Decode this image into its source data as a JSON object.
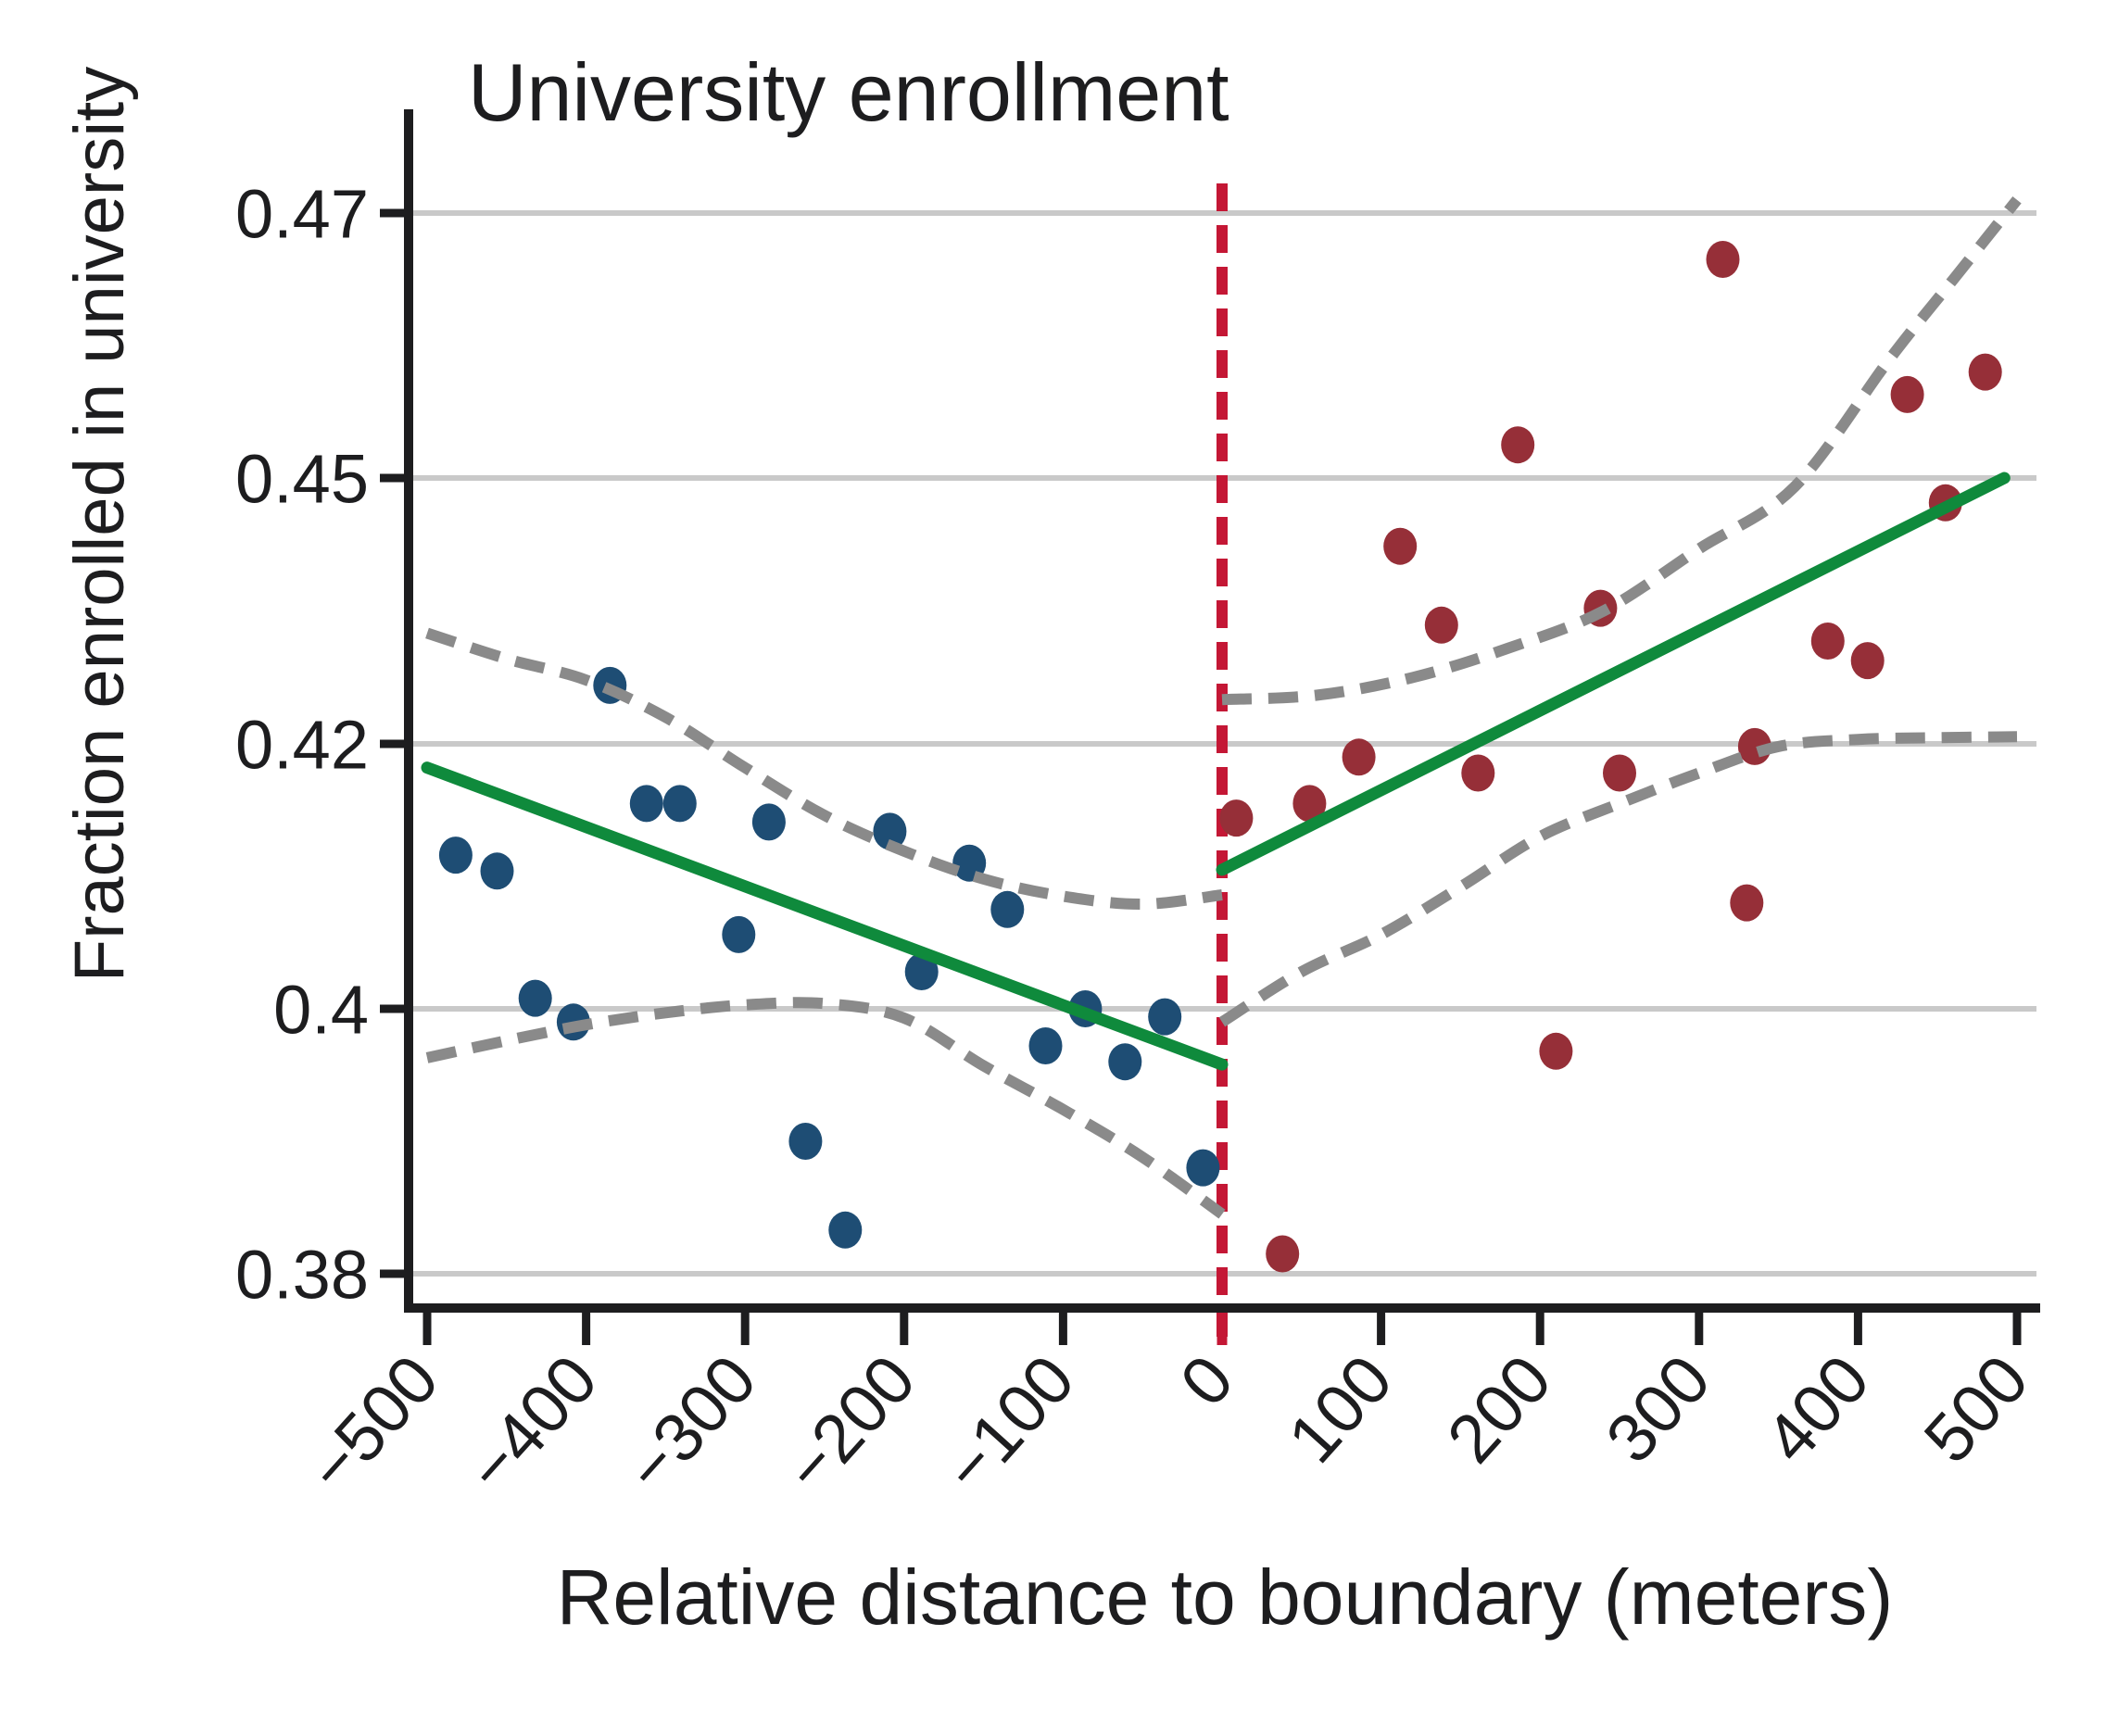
{
  "title": "University enrollment",
  "x_axis_title": "Relative distance to boundary (meters)",
  "y_axis_title": "Fraction enrolled in university",
  "colors": {
    "left_points": "#1e4d74",
    "right_points": "#962f38",
    "fit_line": "#0f8a3c",
    "confidence_band": "#8a8a8a",
    "boundary_line": "#c41735",
    "gridline": "#c9c9c9",
    "axis": "#1d1d1f",
    "background": "#ffffff"
  },
  "chart_data": {
    "type": "scatter",
    "title": "University enrollment",
    "xlabel": "Relative distance to boundary (meters)",
    "ylabel": "Fraction enrolled in university",
    "grid": "horizontal gridlines at each y tick, equally spaced",
    "legend_position": "none",
    "x_axis": {
      "ticks": [
        -500,
        -400,
        -300,
        -200,
        -100,
        0,
        100,
        200,
        300,
        400,
        500
      ],
      "tick_labels": [
        "−500",
        "−400",
        "−300",
        "−200",
        "−100",
        "0",
        "100",
        "200",
        "300",
        "400",
        "500"
      ],
      "tick_label_rotation_deg": -48,
      "range": [
        -515,
        515
      ]
    },
    "y_axis": {
      "ticks": [
        0.47,
        0.45,
        0.42,
        0.4,
        0.38
      ],
      "tick_labels": [
        "0.47",
        "0.45",
        "0.42",
        "0.4",
        "0.38"
      ],
      "note": "tick values are unevenly spaced but gridlines are drawn at equal pixel intervals"
    },
    "boundary_x": 0,
    "series": [
      {
        "name": "binned means left of boundary",
        "kind": "points",
        "color_key": "left_points",
        "points": [
          [
            -482,
            0.4116
          ],
          [
            -456,
            0.4104
          ],
          [
            -432,
            0.4008
          ],
          [
            -408,
            0.399
          ],
          [
            -385,
            0.4266
          ],
          [
            -362,
            0.4155
          ],
          [
            -341,
            0.4155
          ],
          [
            -304,
            0.4056
          ],
          [
            -285,
            0.4141
          ],
          [
            -262,
            0.39
          ],
          [
            -237,
            0.3833
          ],
          [
            -209,
            0.4134
          ],
          [
            -189,
            0.4028
          ],
          [
            -159,
            0.411
          ],
          [
            -135,
            0.4075
          ],
          [
            -111,
            0.3972
          ],
          [
            -86,
            0.4
          ],
          [
            -61,
            0.396
          ],
          [
            -36,
            0.3994
          ],
          [
            -12,
            0.388
          ]
        ]
      },
      {
        "name": "binned means right of boundary",
        "kind": "points",
        "color_key": "right_points",
        "points": [
          [
            9,
            0.4144
          ],
          [
            38,
            0.3815
          ],
          [
            55,
            0.4155
          ],
          [
            86,
            0.419
          ],
          [
            112,
            0.4423
          ],
          [
            138,
            0.4334
          ],
          [
            161,
            0.4178
          ],
          [
            186,
            0.4525
          ],
          [
            210,
            0.3968
          ],
          [
            238,
            0.4353
          ],
          [
            250,
            0.4178
          ],
          [
            315,
            0.4665
          ],
          [
            330,
            0.408
          ],
          [
            335,
            0.4198
          ],
          [
            381,
            0.4316
          ],
          [
            406,
            0.4294
          ],
          [
            431,
            0.4563
          ],
          [
            455,
            0.4472
          ],
          [
            480,
            0.458
          ]
        ]
      },
      {
        "name": "linear fit left of boundary",
        "kind": "line",
        "color_key": "fit_line",
        "points": [
          [
            -500,
            0.4182
          ],
          [
            0,
            0.3958
          ]
        ]
      },
      {
        "name": "linear fit right of boundary",
        "kind": "line",
        "color_key": "fit_line",
        "points": [
          [
            0,
            0.4105
          ],
          [
            492,
            0.45
          ]
        ]
      },
      {
        "name": "confidence band upper left",
        "kind": "dashed-curve",
        "color_key": "confidence_band",
        "points": [
          [
            -500,
            0.4325
          ],
          [
            -450,
            0.4296
          ],
          [
            -400,
            0.4272
          ],
          [
            -350,
            0.423
          ],
          [
            -300,
            0.4182
          ],
          [
            -250,
            0.4146
          ],
          [
            -200,
            0.4119
          ],
          [
            -150,
            0.4098
          ],
          [
            -100,
            0.4085
          ],
          [
            -50,
            0.4079
          ],
          [
            0,
            0.4086
          ]
        ]
      },
      {
        "name": "confidence band lower left",
        "kind": "dashed-curve",
        "color_key": "confidence_band",
        "points": [
          [
            -500,
            0.3963
          ],
          [
            -450,
            0.3976
          ],
          [
            -400,
            0.3988
          ],
          [
            -350,
            0.3997
          ],
          [
            -300,
            0.4003
          ],
          [
            -250,
            0.4004
          ],
          [
            -200,
            0.3993
          ],
          [
            -150,
            0.3957
          ],
          [
            -100,
            0.3924
          ],
          [
            -50,
            0.3888
          ],
          [
            0,
            0.3845
          ]
        ]
      },
      {
        "name": "confidence band upper right",
        "kind": "dashed-curve",
        "color_key": "confidence_band",
        "points": [
          [
            0,
            0.425
          ],
          [
            60,
            0.4255
          ],
          [
            120,
            0.4275
          ],
          [
            180,
            0.4308
          ],
          [
            240,
            0.435
          ],
          [
            300,
            0.442
          ],
          [
            360,
            0.449
          ],
          [
            420,
            0.459
          ],
          [
            460,
            0.465
          ],
          [
            500,
            0.471
          ]
        ]
      },
      {
        "name": "confidence band lower right",
        "kind": "dashed-curve",
        "color_key": "confidence_band",
        "points": [
          [
            0,
            0.399
          ],
          [
            50,
            0.4028
          ],
          [
            100,
            0.4056
          ],
          [
            150,
            0.4092
          ],
          [
            200,
            0.413
          ],
          [
            250,
            0.4155
          ],
          [
            300,
            0.4178
          ],
          [
            350,
            0.4198
          ],
          [
            400,
            0.4205
          ],
          [
            450,
            0.4207
          ],
          [
            500,
            0.4208
          ]
        ]
      }
    ]
  }
}
